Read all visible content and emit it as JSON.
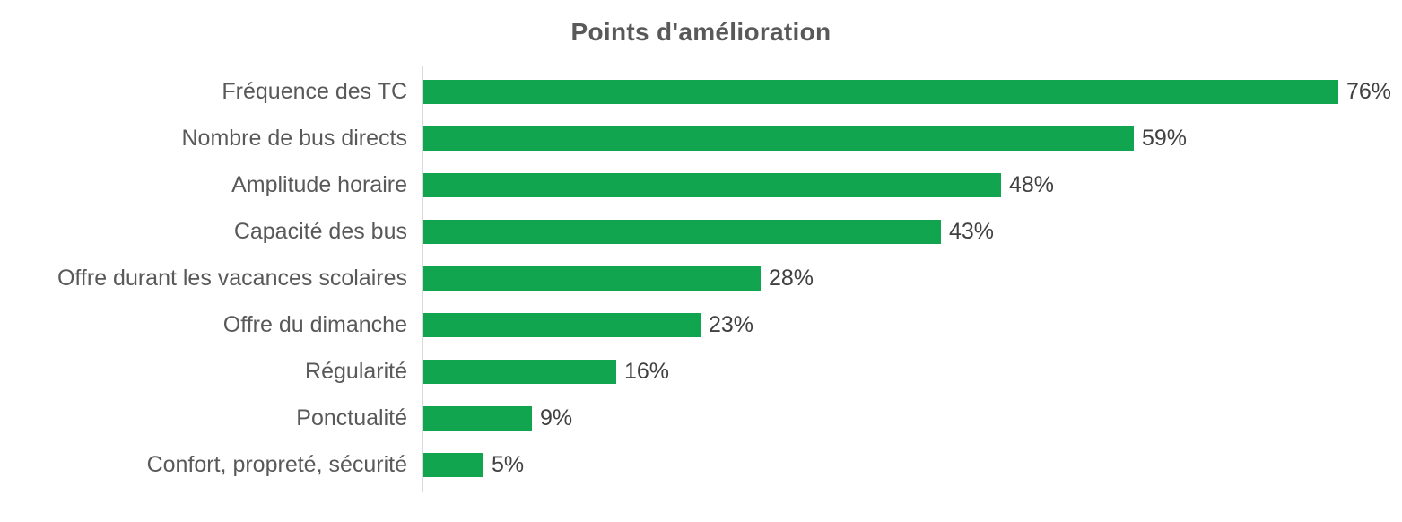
{
  "title": "Points d'amélioration",
  "colors": {
    "bar": "#12a550",
    "axis": "#d9d9d9",
    "title_text": "#595959",
    "category_text": "#595959",
    "value_text": "#404040",
    "background": "#ffffff"
  },
  "chart_data": {
    "type": "bar",
    "orientation": "horizontal",
    "title": "Points d'amélioration",
    "categories": [
      "Fréquence des TC",
      "Nombre de bus directs",
      "Amplitude horaire",
      "Capacité des bus",
      "Offre durant les vacances scolaires",
      "Offre du dimanche",
      "Régularité",
      "Ponctualité",
      "Confort, propreté, sécurité"
    ],
    "values": [
      76,
      59,
      48,
      43,
      28,
      23,
      16,
      9,
      5
    ],
    "value_labels": [
      "76%",
      "59%",
      "48%",
      "43%",
      "28%",
      "23%",
      "16%",
      "9%",
      "5%"
    ],
    "xlabel": "",
    "ylabel": "",
    "xlim": [
      0,
      80
    ],
    "grid": false,
    "legend": false,
    "data_labels": "outside-end"
  }
}
